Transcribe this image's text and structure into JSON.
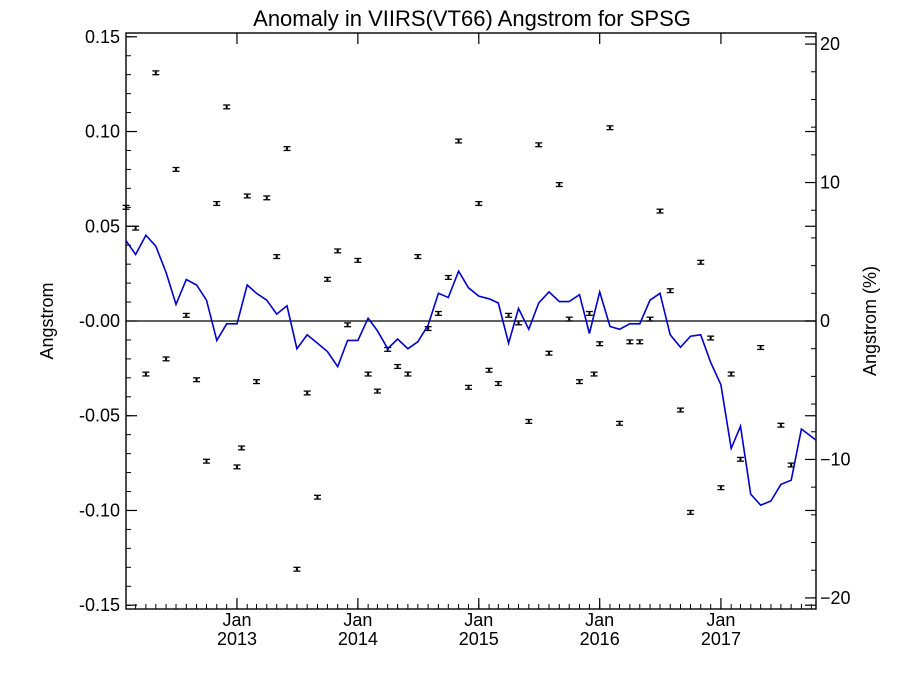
{
  "chart_data": {
    "type": "scatter",
    "title": "Anomaly in VIIRS(VT66) Angstrom for SPSG",
    "ylabel": "Angstrom",
    "y2label": "Angstrom (%)",
    "xlabel": "",
    "xlim": [
      "2012-02-01",
      "2017-10-15"
    ],
    "ylim": [
      -0.152,
      0.152
    ],
    "y2lim": [
      -20.8,
      20.8
    ],
    "grid": false,
    "legend": "none",
    "zero_line": true,
    "y_ticks": [
      {
        "value": 0.15,
        "label": "0.15"
      },
      {
        "value": 0.1,
        "label": "0.10"
      },
      {
        "value": 0.05,
        "label": "0.05"
      },
      {
        "value": 0.0,
        "label": "-0.00"
      },
      {
        "value": -0.05,
        "label": "-0.05"
      },
      {
        "value": -0.1,
        "label": "-0.10"
      },
      {
        "value": -0.15,
        "label": "-0.15"
      }
    ],
    "y2_ticks": [
      {
        "value": 20,
        "label": "20"
      },
      {
        "value": 10,
        "label": "10"
      },
      {
        "value": 0,
        "label": "0"
      },
      {
        "value": -10,
        "label": "−10"
      },
      {
        "value": -20,
        "label": "−20"
      }
    ],
    "x_ticks": [
      {
        "date": "2013-01-01",
        "month": "Jan",
        "year": "2013"
      },
      {
        "date": "2014-01-01",
        "month": "Jan",
        "year": "2014"
      },
      {
        "date": "2015-01-01",
        "month": "Jan",
        "year": "2015"
      },
      {
        "date": "2016-01-01",
        "month": "Jan",
        "year": "2016"
      },
      {
        "date": "2017-01-01",
        "month": "Jan",
        "year": "2017"
      }
    ],
    "series": [
      {
        "kind": "points-with-errorbars",
        "axis": "left",
        "color": "#000000",
        "error": 0.001,
        "points": [
          [
            "2012-02-01",
            0.06
          ],
          [
            "2012-03-01",
            0.049
          ],
          [
            "2012-04-01",
            -0.028
          ],
          [
            "2012-05-01",
            0.131
          ],
          [
            "2012-06-01",
            -0.02
          ],
          [
            "2012-07-01",
            0.08
          ],
          [
            "2012-08-01",
            0.003
          ],
          [
            "2012-09-01",
            -0.031
          ],
          [
            "2012-10-01",
            -0.074
          ],
          [
            "2012-11-01",
            0.062
          ],
          [
            "2012-12-01",
            0.113
          ],
          [
            "2013-01-01",
            -0.077
          ],
          [
            "2013-01-15",
            -0.067
          ],
          [
            "2013-02-01",
            0.066
          ],
          [
            "2013-03-01",
            -0.032
          ],
          [
            "2013-04-01",
            0.065
          ],
          [
            "2013-05-01",
            0.034
          ],
          [
            "2013-06-01",
            0.091
          ],
          [
            "2013-07-01",
            -0.131
          ],
          [
            "2013-08-01",
            -0.038
          ],
          [
            "2013-09-01",
            -0.093
          ],
          [
            "2013-10-01",
            0.022
          ],
          [
            "2013-11-01",
            0.037
          ],
          [
            "2013-12-01",
            -0.002
          ],
          [
            "2014-01-01",
            0.032
          ],
          [
            "2014-02-01",
            -0.028
          ],
          [
            "2014-03-01",
            -0.037
          ],
          [
            "2014-04-01",
            -0.015
          ],
          [
            "2014-05-01",
            -0.024
          ],
          [
            "2014-06-01",
            -0.028
          ],
          [
            "2014-07-01",
            0.034
          ],
          [
            "2014-08-01",
            -0.004
          ],
          [
            "2014-09-01",
            0.004
          ],
          [
            "2014-10-01",
            0.023
          ],
          [
            "2014-11-01",
            0.095
          ],
          [
            "2014-12-01",
            -0.035
          ],
          [
            "2015-01-01",
            0.062
          ],
          [
            "2015-02-01",
            -0.026
          ],
          [
            "2015-03-01",
            -0.033
          ],
          [
            "2015-04-01",
            0.003
          ],
          [
            "2015-05-01",
            -0.001
          ],
          [
            "2015-06-01",
            -0.053
          ],
          [
            "2015-07-01",
            0.093
          ],
          [
            "2015-08-01",
            -0.017
          ],
          [
            "2015-09-01",
            0.072
          ],
          [
            "2015-10-01",
            0.001
          ],
          [
            "2015-11-01",
            -0.032
          ],
          [
            "2015-12-01",
            0.004
          ],
          [
            "2015-12-15",
            -0.028
          ],
          [
            "2016-01-01",
            -0.012
          ],
          [
            "2016-02-01",
            0.102
          ],
          [
            "2016-03-01",
            -0.054
          ],
          [
            "2016-04-01",
            -0.011
          ],
          [
            "2016-05-01",
            -0.011
          ],
          [
            "2016-06-01",
            0.001
          ],
          [
            "2016-07-01",
            0.058
          ],
          [
            "2016-08-01",
            0.016
          ],
          [
            "2016-09-01",
            -0.047
          ],
          [
            "2016-10-01",
            -0.101
          ],
          [
            "2016-11-01",
            0.031
          ],
          [
            "2016-12-01",
            -0.009
          ],
          [
            "2017-01-01",
            -0.088
          ],
          [
            "2017-02-01",
            -0.028
          ],
          [
            "2017-03-01",
            -0.073
          ],
          [
            "2017-05-01",
            -0.014
          ],
          [
            "2017-07-01",
            -0.055
          ],
          [
            "2017-08-01",
            -0.076
          ]
        ]
      },
      {
        "kind": "line",
        "axis": "right",
        "color": "#0000cc",
        "points": [
          [
            "2012-02-01",
            5.8
          ],
          [
            "2012-03-01",
            4.8
          ],
          [
            "2012-04-01",
            6.2
          ],
          [
            "2012-05-01",
            5.4
          ],
          [
            "2012-06-01",
            3.5
          ],
          [
            "2012-07-01",
            1.2
          ],
          [
            "2012-08-01",
            3.0
          ],
          [
            "2012-09-01",
            2.6
          ],
          [
            "2012-10-01",
            1.5
          ],
          [
            "2012-11-01",
            -1.4
          ],
          [
            "2012-12-01",
            -0.2
          ],
          [
            "2013-01-01",
            -0.2
          ],
          [
            "2013-02-01",
            2.6
          ],
          [
            "2013-03-01",
            2.0
          ],
          [
            "2013-04-01",
            1.5
          ],
          [
            "2013-05-01",
            0.5
          ],
          [
            "2013-06-01",
            1.1
          ],
          [
            "2013-07-01",
            -2.0
          ],
          [
            "2013-08-01",
            -1.0
          ],
          [
            "2013-09-01",
            -1.6
          ],
          [
            "2013-10-01",
            -2.2
          ],
          [
            "2013-11-01",
            -3.3
          ],
          [
            "2013-12-01",
            -1.4
          ],
          [
            "2014-01-01",
            -1.4
          ],
          [
            "2014-02-01",
            0.2
          ],
          [
            "2014-03-01",
            -0.7
          ],
          [
            "2014-04-01",
            -2.0
          ],
          [
            "2014-05-01",
            -1.3
          ],
          [
            "2014-06-01",
            -2.0
          ],
          [
            "2014-07-01",
            -1.5
          ],
          [
            "2014-08-01",
            -0.3
          ],
          [
            "2014-09-01",
            2.0
          ],
          [
            "2014-10-01",
            1.7
          ],
          [
            "2014-11-01",
            3.6
          ],
          [
            "2014-12-01",
            2.4
          ],
          [
            "2015-01-01",
            1.8
          ],
          [
            "2015-02-01",
            1.6
          ],
          [
            "2015-03-01",
            1.3
          ],
          [
            "2015-04-01",
            -1.6
          ],
          [
            "2015-05-01",
            0.9
          ],
          [
            "2015-06-01",
            -0.6
          ],
          [
            "2015-07-01",
            1.3
          ],
          [
            "2015-08-01",
            2.1
          ],
          [
            "2015-09-01",
            1.4
          ],
          [
            "2015-10-01",
            1.4
          ],
          [
            "2015-11-01",
            1.9
          ],
          [
            "2015-12-01",
            -0.9
          ],
          [
            "2016-01-01",
            2.1
          ],
          [
            "2016-02-01",
            -0.4
          ],
          [
            "2016-03-01",
            -0.6
          ],
          [
            "2016-04-01",
            -0.2
          ],
          [
            "2016-05-01",
            -0.2
          ],
          [
            "2016-06-01",
            1.5
          ],
          [
            "2016-07-01",
            2.0
          ],
          [
            "2016-08-01",
            -1.0
          ],
          [
            "2016-09-01",
            -1.9
          ],
          [
            "2016-10-01",
            -1.1
          ],
          [
            "2016-11-01",
            -1.0
          ],
          [
            "2016-12-01",
            -3.0
          ],
          [
            "2017-01-01",
            -4.6
          ],
          [
            "2017-02-01",
            -9.2
          ],
          [
            "2017-03-01",
            -7.6
          ],
          [
            "2017-04-01",
            -12.5
          ],
          [
            "2017-05-01",
            -13.3
          ],
          [
            "2017-06-01",
            -13.0
          ],
          [
            "2017-07-01",
            -11.8
          ],
          [
            "2017-08-01",
            -11.5
          ],
          [
            "2017-09-01",
            -7.8
          ],
          [
            "2017-10-15",
            -8.6
          ]
        ]
      }
    ]
  }
}
